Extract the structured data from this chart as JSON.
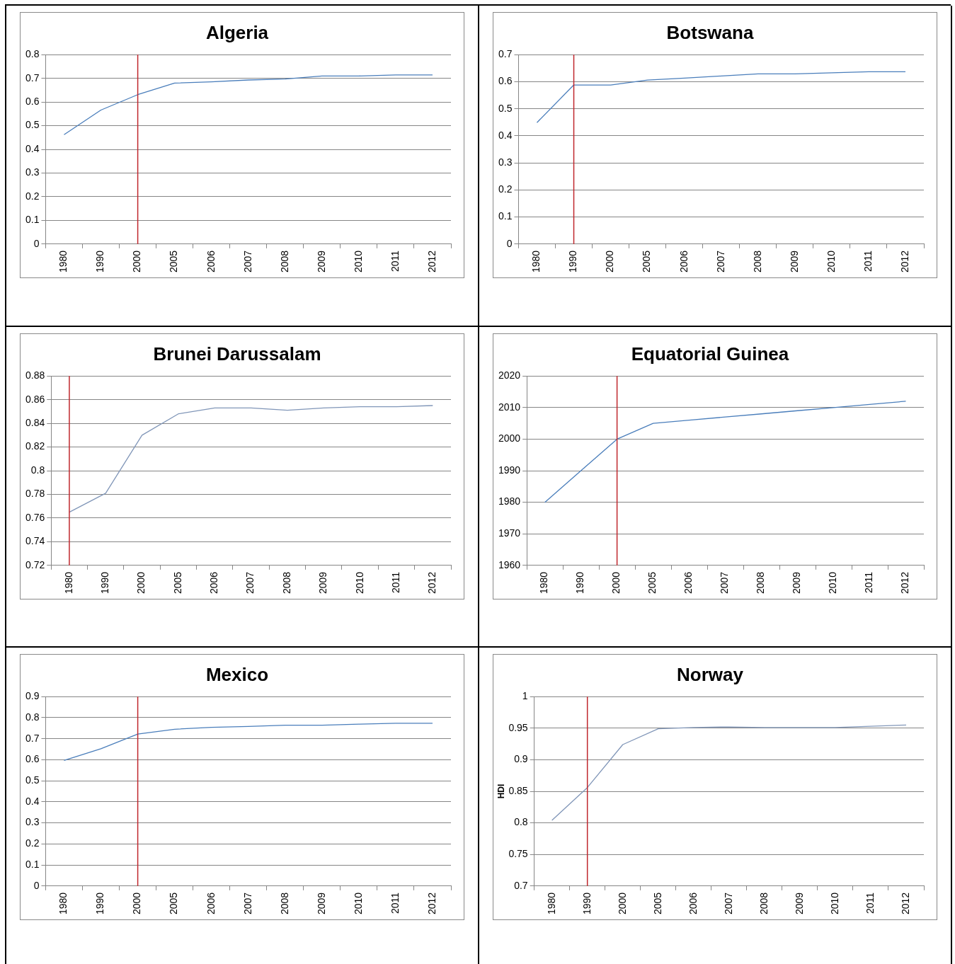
{
  "chart_data": [
    {
      "type": "line",
      "title": "Algeria",
      "categories": [
        "1980",
        "1990",
        "2000",
        "2005",
        "2006",
        "2007",
        "2008",
        "2009",
        "2010",
        "2011",
        "2012"
      ],
      "series": [
        {
          "color": "#4a7ebb",
          "values": [
            0.462,
            0.566,
            0.631,
            0.68,
            0.685,
            0.693,
            0.697,
            0.71,
            0.71,
            0.714,
            0.714
          ]
        }
      ],
      "ylim": [
        0,
        0.8
      ],
      "yticks": [
        0,
        0.1,
        0.2,
        0.3,
        0.4,
        0.5,
        0.6,
        0.7,
        0.8
      ],
      "grid": "y",
      "legend": false,
      "ref_lines": [
        {
          "axis": "x",
          "value": "2000",
          "color": "#c0272d"
        }
      ]
    },
    {
      "type": "line",
      "title": "Botswana",
      "categories": [
        "1980",
        "1990",
        "2000",
        "2005",
        "2006",
        "2007",
        "2008",
        "2009",
        "2010",
        "2011",
        "2012"
      ],
      "series": [
        {
          "color": "#4a7ebb",
          "values": [
            0.449,
            0.588,
            0.588,
            0.606,
            0.613,
            0.621,
            0.629,
            0.629,
            0.633,
            0.637,
            0.637
          ]
        }
      ],
      "ylim": [
        0,
        0.7
      ],
      "yticks": [
        0,
        0.1,
        0.2,
        0.3,
        0.4,
        0.5,
        0.6,
        0.7
      ],
      "grid": "y",
      "legend": false,
      "ref_lines": [
        {
          "axis": "x",
          "value": "1990",
          "color": "#c0272d"
        }
      ]
    },
    {
      "type": "line",
      "title": "Brunei Darussalam",
      "categories": [
        "1980",
        "1990",
        "2000",
        "2005",
        "2006",
        "2007",
        "2008",
        "2009",
        "2010",
        "2011",
        "2012"
      ],
      "series": [
        {
          "color": "#8096b8",
          "values": [
            0.765,
            0.781,
            0.83,
            0.848,
            0.853,
            0.853,
            0.851,
            0.853,
            0.854,
            0.854,
            0.855
          ]
        }
      ],
      "ylim": [
        0.72,
        0.88
      ],
      "yticks": [
        0.72,
        0.74,
        0.76,
        0.78,
        0.8,
        0.82,
        0.84,
        0.86,
        0.88
      ],
      "grid": "y",
      "legend": false,
      "ref_lines": [
        {
          "axis": "x",
          "value": "1980",
          "color": "#c0272d"
        }
      ]
    },
    {
      "type": "line",
      "title": "Equatorial Guinea",
      "categories": [
        "1980",
        "1990",
        "2000",
        "2005",
        "2006",
        "2007",
        "2008",
        "2009",
        "2010",
        "2011",
        "2012"
      ],
      "series": [
        {
          "color": "#4a7ebb",
          "values": [
            1980,
            1990,
            2000,
            2005,
            2006,
            2007,
            2008,
            2009,
            2010,
            2011,
            2012
          ]
        }
      ],
      "ylim": [
        1960,
        2020
      ],
      "yticks": [
        1960,
        1970,
        1980,
        1990,
        2000,
        2010,
        2020
      ],
      "grid": "y",
      "legend": false,
      "ref_lines": [
        {
          "axis": "x",
          "value": "2000",
          "color": "#c0272d"
        }
      ]
    },
    {
      "type": "line",
      "title": "Mexico",
      "categories": [
        "1980",
        "1990",
        "2000",
        "2005",
        "2006",
        "2007",
        "2008",
        "2009",
        "2010",
        "2011",
        "2012"
      ],
      "series": [
        {
          "color": "#4a7ebb",
          "values": [
            0.597,
            0.652,
            0.722,
            0.745,
            0.754,
            0.758,
            0.764,
            0.764,
            0.769,
            0.773,
            0.773
          ]
        }
      ],
      "ylim": [
        0,
        0.9
      ],
      "yticks": [
        0,
        0.1,
        0.2,
        0.3,
        0.4,
        0.5,
        0.6,
        0.7,
        0.8,
        0.9
      ],
      "grid": "y",
      "legend": false,
      "ref_lines": [
        {
          "axis": "x",
          "value": "2000",
          "color": "#c0272d"
        }
      ]
    },
    {
      "type": "line",
      "title": "Norway",
      "ylabel": "HDI",
      "categories": [
        "1980",
        "1990",
        "2000",
        "2005",
        "2006",
        "2007",
        "2008",
        "2009",
        "2010",
        "2011",
        "2012"
      ],
      "series": [
        {
          "color": "#8096b8",
          "values": [
            0.804,
            0.856,
            0.924,
            0.949,
            0.951,
            0.952,
            0.951,
            0.951,
            0.951,
            0.953,
            0.955
          ]
        }
      ],
      "ylim": [
        0.7,
        1
      ],
      "yticks": [
        0.7,
        0.75,
        0.8,
        0.85,
        0.9,
        0.95,
        1
      ],
      "grid": "y",
      "legend": false,
      "ref_lines": [
        {
          "axis": "x",
          "value": "1990",
          "color": "#c0272d"
        }
      ]
    }
  ]
}
